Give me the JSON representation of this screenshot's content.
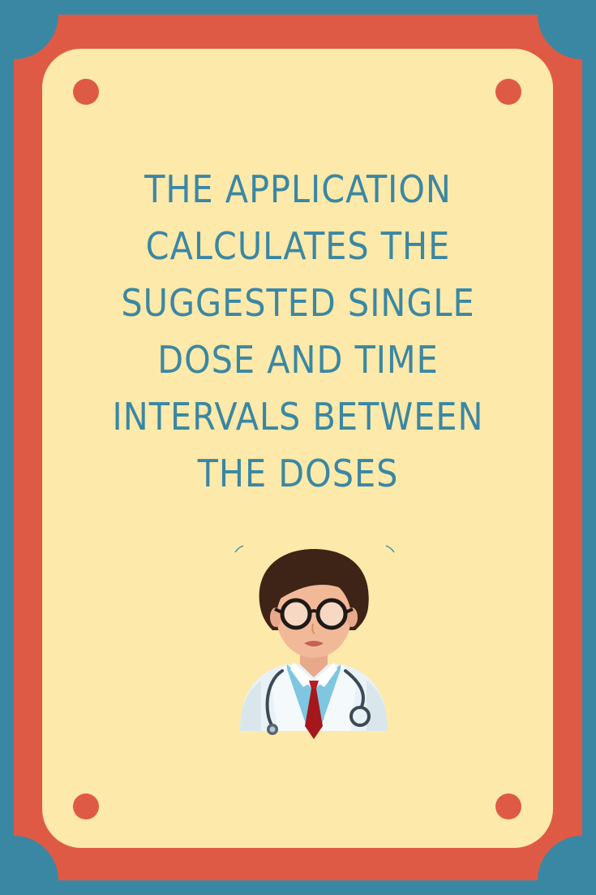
{
  "headline": {
    "lines": [
      "THE APPLICATION",
      "CALCULATES THE",
      "SUGGESTED SINGLE",
      "DOSE AND TIME",
      "INTERVALS BETWEEN",
      "THE DOSES"
    ]
  },
  "colors": {
    "outer_background": "#3a87a3",
    "frame_border": "#df5a45",
    "card_fill": "#fde9a9",
    "text": "#3a87a3",
    "corner_dots": "#df5a45"
  },
  "illustration": {
    "icon": "doctor-icon"
  }
}
